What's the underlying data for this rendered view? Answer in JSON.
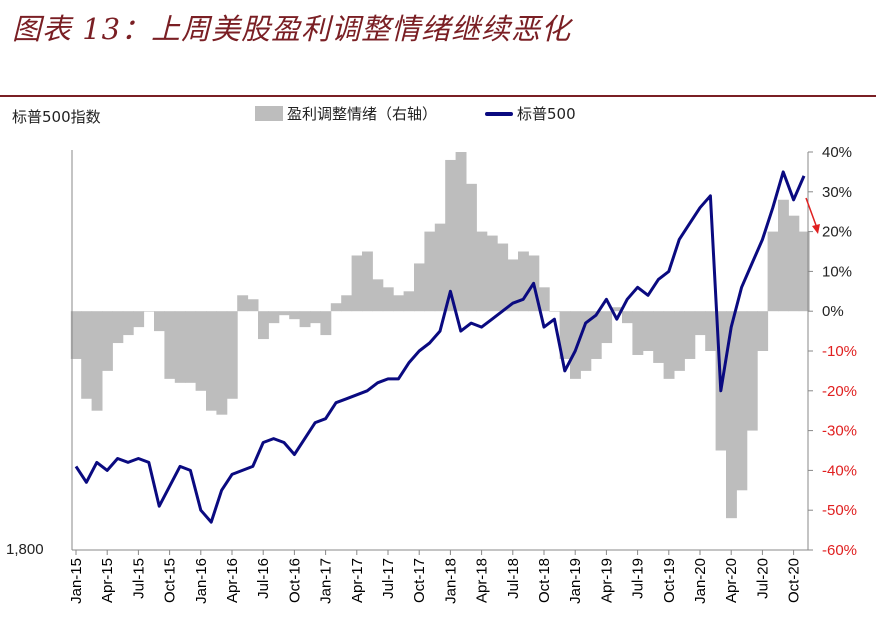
{
  "header": {
    "title": "图表 13：上周美股盈利调整情绪继续恶化",
    "left_axis_title": "标普500指数",
    "left_axis_min_label": "1,800"
  },
  "legend": [
    {
      "label": "盈利调整情绪（右轴）",
      "color": "#bdbdbd",
      "kind": "area"
    },
    {
      "label": "标普500",
      "color": "#0a0a80",
      "kind": "line"
    }
  ],
  "chart_data": {
    "type": "line",
    "x_ticks": [
      "Jan-15",
      "Apr-15",
      "Jul-15",
      "Oct-15",
      "Jan-16",
      "Apr-16",
      "Jul-16",
      "Oct-16",
      "Jan-17",
      "Apr-17",
      "Jul-17",
      "Oct-17",
      "Jan-18",
      "Apr-18",
      "Jul-18",
      "Oct-18",
      "Jan-19",
      "Apr-19",
      "Jul-19",
      "Oct-19",
      "Jan-20",
      "Apr-20",
      "Jul-20",
      "Oct-20"
    ],
    "y2_ticks": [
      "40%",
      "30%",
      "20%",
      "10%",
      "0%",
      "-10%",
      "-20%",
      "-30%",
      "-40%",
      "-50%",
      "-60%"
    ],
    "y2_range": [
      -0.6,
      0.4
    ],
    "y_min": 1800,
    "series": [
      {
        "name": "盈利调整情绪（右轴）",
        "axis": "right",
        "type": "area",
        "color": "#bdbdbd",
        "points": [
          [
            "Jan-15",
            -0.12
          ],
          [
            "Feb-15",
            -0.22
          ],
          [
            "Mar-15",
            -0.25
          ],
          [
            "Apr-15",
            -0.15
          ],
          [
            "May-15",
            -0.08
          ],
          [
            "Jun-15",
            -0.06
          ],
          [
            "Jul-15",
            -0.04
          ],
          [
            "Aug-15",
            0.0
          ],
          [
            "Sep-15",
            -0.05
          ],
          [
            "Oct-15",
            -0.17
          ],
          [
            "Nov-15",
            -0.18
          ],
          [
            "Dec-15",
            -0.18
          ],
          [
            "Jan-16",
            -0.2
          ],
          [
            "Feb-16",
            -0.25
          ],
          [
            "Mar-16",
            -0.26
          ],
          [
            "Apr-16",
            -0.22
          ],
          [
            "May-16",
            0.04
          ],
          [
            "Jun-16",
            0.03
          ],
          [
            "Jul-16",
            -0.07
          ],
          [
            "Aug-16",
            -0.03
          ],
          [
            "Sep-16",
            -0.01
          ],
          [
            "Oct-16",
            -0.02
          ],
          [
            "Nov-16",
            -0.04
          ],
          [
            "Dec-16",
            -0.03
          ],
          [
            "Jan-17",
            -0.06
          ],
          [
            "Feb-17",
            0.02
          ],
          [
            "Mar-17",
            0.04
          ],
          [
            "Apr-17",
            0.14
          ],
          [
            "May-17",
            0.15
          ],
          [
            "Jun-17",
            0.08
          ],
          [
            "Jul-17",
            0.06
          ],
          [
            "Aug-17",
            0.04
          ],
          [
            "Sep-17",
            0.05
          ],
          [
            "Oct-17",
            0.12
          ],
          [
            "Nov-17",
            0.2
          ],
          [
            "Dec-17",
            0.22
          ],
          [
            "Jan-18",
            0.38
          ],
          [
            "Feb-18",
            0.4
          ],
          [
            "Mar-18",
            0.32
          ],
          [
            "Apr-18",
            0.2
          ],
          [
            "May-18",
            0.19
          ],
          [
            "Jun-18",
            0.17
          ],
          [
            "Jul-18",
            0.13
          ],
          [
            "Aug-18",
            0.15
          ],
          [
            "Sep-18",
            0.14
          ],
          [
            "Oct-18",
            0.06
          ],
          [
            "Nov-18",
            0.0
          ],
          [
            "Dec-18",
            -0.12
          ],
          [
            "Jan-19",
            -0.17
          ],
          [
            "Feb-19",
            -0.15
          ],
          [
            "Mar-19",
            -0.12
          ],
          [
            "Apr-19",
            -0.08
          ],
          [
            "May-19",
            0.01
          ],
          [
            "Jun-19",
            -0.03
          ],
          [
            "Jul-19",
            -0.11
          ],
          [
            "Aug-19",
            -0.1
          ],
          [
            "Sep-19",
            -0.13
          ],
          [
            "Oct-19",
            -0.17
          ],
          [
            "Nov-19",
            -0.15
          ],
          [
            "Dec-19",
            -0.12
          ],
          [
            "Jan-20",
            -0.06
          ],
          [
            "Feb-20",
            -0.1
          ],
          [
            "Mar-20",
            -0.35
          ],
          [
            "Apr-20",
            -0.52
          ],
          [
            "May-20",
            -0.45
          ],
          [
            "Jun-20",
            -0.3
          ],
          [
            "Jul-20",
            -0.1
          ],
          [
            "Aug-20",
            0.2
          ],
          [
            "Sep-20",
            0.28
          ],
          [
            "Oct-20",
            0.24
          ],
          [
            "Nov-20",
            0.2
          ]
        ]
      },
      {
        "name": "标普500",
        "axis": "left",
        "type": "line",
        "color": "#0a0a80",
        "points_pct_scale": [
          [
            "Jan-15",
            -0.39
          ],
          [
            "Feb-15",
            -0.43
          ],
          [
            "Mar-15",
            -0.38
          ],
          [
            "Apr-15",
            -0.4
          ],
          [
            "May-15",
            -0.37
          ],
          [
            "Jun-15",
            -0.38
          ],
          [
            "Jul-15",
            -0.37
          ],
          [
            "Aug-15",
            -0.38
          ],
          [
            "Sep-15",
            -0.49
          ],
          [
            "Oct-15",
            -0.44
          ],
          [
            "Nov-15",
            -0.39
          ],
          [
            "Dec-15",
            -0.4
          ],
          [
            "Jan-16",
            -0.5
          ],
          [
            "Feb-16",
            -0.53
          ],
          [
            "Mar-16",
            -0.45
          ],
          [
            "Apr-16",
            -0.41
          ],
          [
            "May-16",
            -0.4
          ],
          [
            "Jun-16",
            -0.39
          ],
          [
            "Jul-16",
            -0.33
          ],
          [
            "Aug-16",
            -0.32
          ],
          [
            "Sep-16",
            -0.33
          ],
          [
            "Oct-16",
            -0.36
          ],
          [
            "Nov-16",
            -0.32
          ],
          [
            "Dec-16",
            -0.28
          ],
          [
            "Jan-17",
            -0.27
          ],
          [
            "Feb-17",
            -0.23
          ],
          [
            "Mar-17",
            -0.22
          ],
          [
            "Apr-17",
            -0.21
          ],
          [
            "May-17",
            -0.2
          ],
          [
            "Jun-17",
            -0.18
          ],
          [
            "Jul-17",
            -0.17
          ],
          [
            "Aug-17",
            -0.17
          ],
          [
            "Sep-17",
            -0.13
          ],
          [
            "Oct-17",
            -0.1
          ],
          [
            "Nov-17",
            -0.08
          ],
          [
            "Dec-17",
            -0.05
          ],
          [
            "Jan-18",
            0.05
          ],
          [
            "Feb-18",
            -0.05
          ],
          [
            "Mar-18",
            -0.03
          ],
          [
            "Apr-18",
            -0.04
          ],
          [
            "May-18",
            -0.02
          ],
          [
            "Jun-18",
            0.0
          ],
          [
            "Jul-18",
            0.02
          ],
          [
            "Aug-18",
            0.03
          ],
          [
            "Sep-18",
            0.07
          ],
          [
            "Oct-18",
            -0.04
          ],
          [
            "Nov-18",
            -0.02
          ],
          [
            "Dec-18",
            -0.15
          ],
          [
            "Jan-19",
            -0.1
          ],
          [
            "Feb-19",
            -0.03
          ],
          [
            "Mar-19",
            -0.01
          ],
          [
            "Apr-19",
            0.03
          ],
          [
            "May-19",
            -0.02
          ],
          [
            "Jun-19",
            0.03
          ],
          [
            "Jul-19",
            0.06
          ],
          [
            "Aug-19",
            0.04
          ],
          [
            "Sep-19",
            0.08
          ],
          [
            "Oct-19",
            0.1
          ],
          [
            "Nov-19",
            0.18
          ],
          [
            "Dec-19",
            0.22
          ],
          [
            "Jan-20",
            0.26
          ],
          [
            "Feb-20",
            0.29
          ],
          [
            "Mar-20",
            -0.2
          ],
          [
            "Apr-20",
            -0.04
          ],
          [
            "May-20",
            0.06
          ],
          [
            "Jun-20",
            0.12
          ],
          [
            "Jul-20",
            0.18
          ],
          [
            "Aug-20",
            0.26
          ],
          [
            "Sep-20",
            0.35
          ],
          [
            "Oct-20",
            0.28
          ],
          [
            "Nov-20",
            0.34
          ]
        ]
      }
    ],
    "annotation": {
      "type": "arrow",
      "color": "#e02020"
    },
    "grid": false
  }
}
